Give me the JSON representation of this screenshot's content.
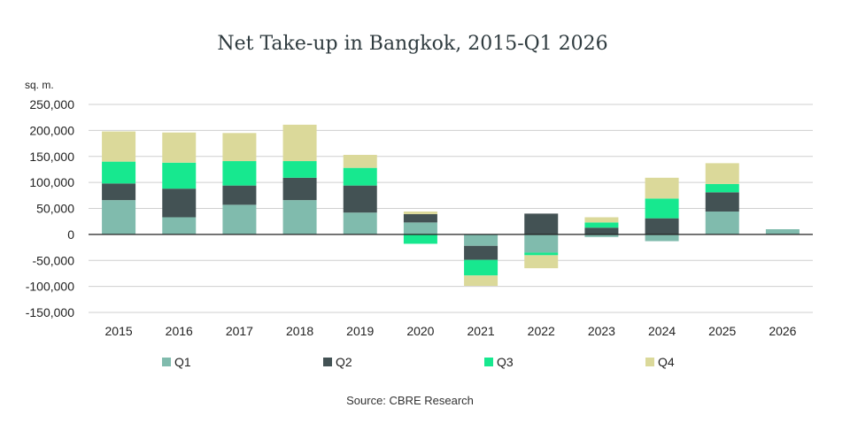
{
  "chart_data": {
    "type": "bar",
    "stacked": true,
    "title": "Net Take-up in Bangkok, 2015-Q1 2026",
    "ylabel": "sq. m.",
    "source": "Source: CBRE Research",
    "ylim": [
      -150000,
      250000
    ],
    "yticks": [
      250000,
      200000,
      150000,
      100000,
      50000,
      0,
      -50000,
      -100000,
      -150000
    ],
    "ytick_labels": [
      "250,000",
      "200,000",
      "150,000",
      "100,000",
      "50,000",
      "0",
      "-50,000",
      "-100,000",
      "-150,000"
    ],
    "grid": true,
    "legend_position": "bottom",
    "categories": [
      "2015",
      "2016",
      "2017",
      "2018",
      "2019",
      "2020",
      "2021",
      "2022",
      "2023",
      "2024",
      "2025",
      "2026"
    ],
    "series": [
      {
        "name": "Q1",
        "color": "#80bbad",
        "values": [
          66000,
          33000,
          57000,
          66000,
          42000,
          23000,
          -22000,
          -35000,
          -5000,
          -13000,
          44000,
          10000
        ]
      },
      {
        "name": "Q2",
        "color": "#435254",
        "values": [
          32000,
          55000,
          37000,
          43000,
          52000,
          16000,
          -27000,
          40000,
          13000,
          31000,
          37000,
          0
        ]
      },
      {
        "name": "Q3",
        "color": "#17e88f",
        "values": [
          42000,
          50000,
          47000,
          32000,
          34000,
          -18000,
          -30000,
          -5000,
          10000,
          38000,
          16000,
          0
        ]
      },
      {
        "name": "Q4",
        "color": "#dbd99a",
        "values": [
          58000,
          58000,
          54000,
          70000,
          25000,
          5000,
          -20000,
          -25000,
          10000,
          40000,
          40000,
          0
        ]
      }
    ]
  }
}
